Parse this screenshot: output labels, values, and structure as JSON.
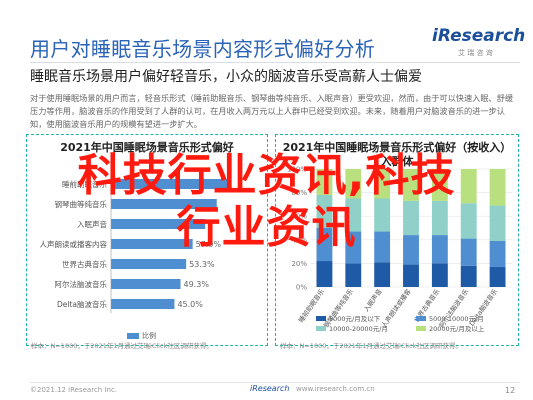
{
  "header": {
    "title": "用户对睡眠音乐场景内容形式偏好分析",
    "logo_mark": "iResearch",
    "logo_sub": "艾 瑞 咨 询"
  },
  "subtitle": "睡眠音乐场景用户偏好轻音乐，小众的脑波音乐受高薪人士偏爱",
  "description": "对于使用睡眠场景的用户而言，轻音乐形式（睡前助眠音乐、钢琴曲等纯音乐、入眠声音）更受欢迎，然而，由于可以快速入眠、舒缓压力等作用，脑波音乐的作用受到了人群的认可，在月收入两万元以上人群中已经受到欢迎。未来，随着用户对脑波音乐的进一步认知，使用脑波音乐用户的规模有望进一步扩大。",
  "watermark": {
    "line1": "科技行业资讯,科技",
    "line2": "行业资讯"
  },
  "chart_data": [
    {
      "type": "bar",
      "orientation": "horizontal",
      "title": "2021年中国睡眠场景音乐形式偏好",
      "categories": [
        "睡前助眠音乐",
        "钢琴曲等纯音乐",
        "入眠声音",
        "人声朗读或播客内容",
        "世界古典音乐",
        "阿尔法脑波音乐",
        "Delta脑波音乐"
      ],
      "values": [
        84.2,
        75.0,
        66.8,
        57.9,
        53.3,
        49.3,
        45.0
      ],
      "value_labels": [
        "",
        "",
        "",
        "57.9%",
        "53.3%",
        "49.3%",
        "45.0%"
      ],
      "value_suffix": "%",
      "xlim": [
        0,
        100
      ],
      "legend": [
        "比例"
      ],
      "legend_position": "bottom",
      "note": "样本：N=1000，于2021年1月通过艾瑞iClick社区调研获得。",
      "color": "#4f8ed0"
    },
    {
      "type": "bar",
      "orientation": "vertical",
      "stacked": true,
      "title": "2021年中国睡眠场景音乐形式偏好（按收入）",
      "title_line2": "入群体",
      "categories": [
        "睡前助眠音乐",
        "钢琴曲等纯音乐",
        "入眠声音",
        "人声朗读或播客",
        "世界古典音乐",
        "阿尔法脑波音乐",
        "Delta脑波音乐"
      ],
      "series": [
        {
          "name": "5000元/月及以下",
          "color": "#1f5aa6",
          "values": [
            22,
            20,
            21,
            19,
            20,
            18,
            17
          ]
        },
        {
          "name": "5000-10000元/月",
          "color": "#4f8ed0",
          "values": [
            28,
            27,
            26,
            25,
            24,
            23,
            22
          ]
        },
        {
          "name": "10000-20000元/月",
          "color": "#8fd0c8",
          "values": [
            28,
            28,
            28,
            29,
            29,
            30,
            30
          ]
        },
        {
          "name": "20000元/月及以上",
          "color": "#b9e07f",
          "values": [
            22,
            25,
            25,
            27,
            27,
            29,
            31
          ]
        }
      ],
      "ylim": [
        0,
        100
      ],
      "yticks": [
        "0%",
        "20%",
        "40%",
        "60%",
        "80%",
        "100%"
      ],
      "legend_position": "bottom",
      "note": "样本：N=1000，于2021年1月通过艾瑞iClick社区调研获得。"
    }
  ],
  "footer": {
    "source": "©2021.12 iResearch Inc.",
    "logo": "iResearch",
    "url": "www.iresearch.com.cn",
    "page_number": "12"
  }
}
